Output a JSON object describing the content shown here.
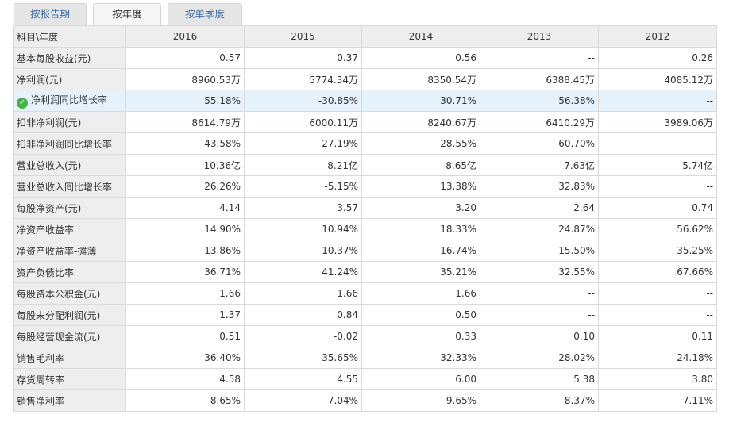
{
  "tabs": [
    {
      "label": "按报告期",
      "active": false
    },
    {
      "label": "按年度",
      "active": true
    },
    {
      "label": "按单季度",
      "active": false
    }
  ],
  "table": {
    "corner": "科目\\年度",
    "years": [
      "2016",
      "2015",
      "2014",
      "2013",
      "2012"
    ],
    "rows": [
      {
        "label": "基本每股收益(元)",
        "values": [
          "0.57",
          "0.37",
          "0.56",
          "--",
          "0.26"
        ]
      },
      {
        "label": "净利润(元)",
        "values": [
          "8960.53万",
          "5774.34万",
          "8350.54万",
          "6388.45万",
          "4085.12万"
        ]
      },
      {
        "label": "净利润同比增长率",
        "values": [
          "55.18%",
          "-30.85%",
          "30.71%",
          "56.38%",
          "--"
        ],
        "highlight": true,
        "icon": "check-circle-icon"
      },
      {
        "label": "扣非净利润(元)",
        "values": [
          "8614.79万",
          "6000.11万",
          "8240.67万",
          "6410.29万",
          "3989.06万"
        ]
      },
      {
        "label": "扣非净利润同比增长率",
        "values": [
          "43.58%",
          "-27.19%",
          "28.55%",
          "60.70%",
          "--"
        ]
      },
      {
        "label": "营业总收入(元)",
        "values": [
          "10.36亿",
          "8.21亿",
          "8.65亿",
          "7.63亿",
          "5.74亿"
        ]
      },
      {
        "label": "营业总收入同比增长率",
        "values": [
          "26.26%",
          "-5.15%",
          "13.38%",
          "32.83%",
          "--"
        ]
      },
      {
        "label": "每股净资产(元)",
        "values": [
          "4.14",
          "3.57",
          "3.20",
          "2.64",
          "0.74"
        ]
      },
      {
        "label": "净资产收益率",
        "values": [
          "14.90%",
          "10.94%",
          "18.33%",
          "24.87%",
          "56.62%"
        ]
      },
      {
        "label": "净资产收益率-摊薄",
        "values": [
          "13.86%",
          "10.37%",
          "16.74%",
          "15.50%",
          "35.25%"
        ]
      },
      {
        "label": "资产负债比率",
        "values": [
          "36.71%",
          "41.24%",
          "35.21%",
          "32.55%",
          "67.66%"
        ]
      },
      {
        "label": "每股资本公积金(元)",
        "values": [
          "1.66",
          "1.66",
          "1.66",
          "--",
          "--"
        ]
      },
      {
        "label": "每股未分配利润(元)",
        "values": [
          "1.37",
          "0.84",
          "0.50",
          "--",
          "--"
        ]
      },
      {
        "label": "每股经营现金流(元)",
        "values": [
          "0.51",
          "-0.02",
          "0.33",
          "0.10",
          "0.11"
        ]
      },
      {
        "label": "销售毛利率",
        "values": [
          "36.40%",
          "35.65%",
          "32.33%",
          "28.02%",
          "24.18%"
        ]
      },
      {
        "label": "存货周转率",
        "values": [
          "4.58",
          "4.55",
          "6.00",
          "5.38",
          "3.80"
        ]
      },
      {
        "label": "销售净利率",
        "values": [
          "8.65%",
          "7.04%",
          "9.65%",
          "8.37%",
          "7.11%"
        ]
      }
    ]
  }
}
